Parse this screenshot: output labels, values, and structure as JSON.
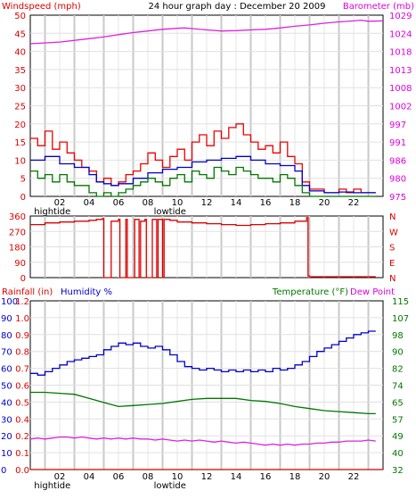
{
  "chart_data": [
    {
      "type": "line",
      "title": "24 hour graph day : December 20 2009",
      "left_axis_label": "Windspeed (mph)",
      "right_axis_label": "Barometer (mb)",
      "x_tick_labels": [
        "02",
        "04",
        "06",
        "08",
        "10",
        "12",
        "14",
        "16",
        "18",
        "20",
        "22"
      ],
      "x_range": [
        0,
        24
      ],
      "tide_markers": [
        {
          "label": "hightide",
          "hour": 1.5
        },
        {
          "label": "lowtide",
          "hour": 9.5
        }
      ],
      "left_ticks": [
        0,
        5,
        10,
        15,
        20,
        25,
        30,
        35,
        40,
        45,
        50
      ],
      "left_range": [
        0,
        50
      ],
      "right_ticks": [
        "975",
        "980",
        "986",
        "991",
        "997",
        "1002",
        "1008",
        "1013",
        "1018",
        "1024",
        "1029"
      ],
      "right_range": [
        975,
        1029
      ],
      "grid": true,
      "series": [
        {
          "axis": "right",
          "color": "#dd22dd",
          "x": [
            0,
            2,
            4,
            5,
            6,
            7,
            8,
            9,
            10,
            10.5,
            11,
            12,
            13,
            14,
            15,
            16,
            17,
            18,
            19,
            20,
            21,
            22,
            22.5,
            23,
            24
          ],
          "y": [
            1020.5,
            1021,
            1022,
            1022.5,
            1023.2,
            1023.8,
            1024.3,
            1024.8,
            1025.1,
            1025.2,
            1025,
            1024.6,
            1024.3,
            1024.4,
            1024.6,
            1024.8,
            1025.2,
            1025.7,
            1026.1,
            1026.6,
            1027,
            1027.3,
            1027.5,
            1027.2,
            1027.3
          ]
        },
        {
          "axis": "left",
          "color": "#ee0000",
          "x": [
            0,
            0.5,
            1,
            1.5,
            2,
            2.5,
            3,
            3.5,
            4,
            4.5,
            5,
            5.5,
            6,
            6.5,
            7,
            7.5,
            8,
            8.5,
            9,
            9.5,
            10,
            10.5,
            11,
            11.5,
            12,
            12.5,
            13,
            13.5,
            14,
            14.5,
            15,
            15.5,
            16,
            16.5,
            17,
            17.5,
            18,
            18.5,
            19,
            19.5,
            20,
            20.5,
            21,
            21.5,
            22,
            22.5,
            23,
            23.5
          ],
          "y": [
            16,
            14,
            18,
            13,
            15,
            12,
            10,
            8,
            7,
            4,
            5,
            3,
            4,
            6,
            7,
            9,
            12,
            10,
            8,
            11,
            13,
            10,
            15,
            17,
            14,
            18,
            16,
            19,
            20,
            17,
            15,
            13,
            14,
            12,
            15,
            11,
            9,
            4,
            2,
            2,
            1,
            1,
            2,
            1,
            2,
            1,
            1,
            1
          ]
        },
        {
          "axis": "left",
          "color": "#0000cc",
          "x": [
            0,
            1,
            2,
            3,
            4,
            4.5,
            5,
            5.5,
            6,
            7,
            8,
            9,
            10,
            11,
            12,
            13,
            14,
            15,
            16,
            17,
            18,
            18.5,
            19,
            20,
            21,
            22,
            23,
            23.5
          ],
          "y": [
            10,
            11,
            9,
            8,
            6,
            4,
            3.5,
            3,
            3.5,
            5,
            6.5,
            7.5,
            8,
            9.5,
            10,
            10.5,
            11,
            10,
            9,
            8.5,
            7,
            3,
            1.5,
            1,
            1.2,
            1,
            1,
            1
          ]
        },
        {
          "axis": "left",
          "color": "#007700",
          "x": [
            0,
            0.5,
            1,
            1.5,
            2,
            2.5,
            3,
            3.5,
            4,
            4.5,
            5,
            5.5,
            6,
            6.5,
            7,
            7.5,
            8,
            8.5,
            9,
            9.5,
            10,
            10.5,
            11,
            11.5,
            12,
            12.5,
            13,
            13.5,
            14,
            14.5,
            15,
            15.5,
            16,
            16.5,
            17,
            17.5,
            18,
            18.5,
            19,
            19.5,
            20,
            20.5,
            21,
            21.5,
            22,
            22.5,
            23,
            23.5
          ],
          "y": [
            7,
            5,
            6,
            4,
            6,
            4,
            3,
            3,
            1,
            0,
            1,
            0,
            1,
            2,
            3,
            4,
            5,
            4,
            3,
            5,
            6,
            4,
            7,
            6,
            5,
            8,
            7,
            6,
            8,
            7,
            6,
            5,
            5,
            4,
            6,
            5,
            3,
            1,
            0,
            0,
            0,
            0,
            0,
            0,
            0,
            0,
            0,
            0
          ]
        }
      ]
    },
    {
      "type": "line",
      "left_ticks": [
        0,
        90,
        180,
        270,
        360
      ],
      "left_range": [
        0,
        360
      ],
      "right_ticks": [
        "N",
        "E",
        "S",
        "W",
        "N"
      ],
      "x_range": [
        0,
        24
      ],
      "grid": true,
      "series": [
        {
          "color": "#dd0000",
          "x": [
            0,
            1,
            2,
            3,
            4,
            4.5,
            4.9,
            5,
            5.4,
            5.5,
            6,
            6.1,
            6.2,
            6.5,
            6.6,
            7,
            7.1,
            7.4,
            7.5,
            7.8,
            7.9,
            8.2,
            8.3,
            8.6,
            8.7,
            9,
            9.1,
            9.4,
            9.5,
            10,
            11,
            12,
            13,
            14,
            15,
            16,
            17,
            18,
            18.8,
            18.9,
            19,
            20,
            21,
            22,
            23,
            23.5
          ],
          "y": [
            310,
            320,
            325,
            330,
            335,
            340,
            345,
            0,
            0,
            330,
            340,
            0,
            0,
            340,
            0,
            0,
            340,
            0,
            330,
            340,
            0,
            0,
            340,
            0,
            340,
            0,
            340,
            340,
            335,
            325,
            320,
            315,
            310,
            305,
            310,
            315,
            320,
            330,
            350,
            10,
            5,
            5,
            5,
            5,
            5,
            5
          ]
        }
      ]
    },
    {
      "type": "line",
      "left_axis_label": "Rainfall (in)",
      "humidity_label": "Humidity %",
      "right_axis_label": "Temperature (°F)",
      "right_axis_label_2": "Dew Point",
      "x_tick_labels": [
        "02",
        "04",
        "06",
        "08",
        "10",
        "12",
        "14",
        "16",
        "18",
        "20",
        "22"
      ],
      "x_range": [
        0,
        24
      ],
      "tide_markers": [
        {
          "label": "hightide",
          "hour": 1.5
        },
        {
          "label": "lowtide",
          "hour": 9.5
        }
      ],
      "humidity_ticks": [
        0,
        10,
        20,
        30,
        40,
        50,
        60,
        70,
        80,
        90,
        100
      ],
      "humidity_range": [
        0,
        100
      ],
      "rain_ticks": [
        "0.0",
        "0.1",
        "0.2",
        "0.4",
        "0.5",
        "0.6",
        "0.7",
        "0.8",
        "0.9",
        "1.0",
        "1.2"
      ],
      "rain_range": [
        0,
        1.2
      ],
      "temp_ticks": [
        "32",
        "40",
        "49",
        "57",
        "65",
        "74",
        "82",
        "90",
        "98",
        "107",
        "115"
      ],
      "temp_range": [
        32,
        115
      ],
      "grid": true,
      "series": [
        {
          "name": "Humidity %",
          "axis": "humidity",
          "color": "#0000cc",
          "x": [
            0,
            0.5,
            1,
            1.5,
            2,
            2.5,
            3,
            3.5,
            4,
            4.5,
            5,
            5.5,
            6,
            6.5,
            7,
            7.5,
            8,
            8.5,
            9,
            9.5,
            10,
            10.5,
            11,
            11.5,
            12,
            12.5,
            13,
            13.5,
            14,
            14.5,
            15,
            15.5,
            16,
            16.5,
            17,
            17.5,
            18,
            18.5,
            19,
            19.5,
            20,
            20.5,
            21,
            21.5,
            22,
            22.5,
            23,
            23.5
          ],
          "y": [
            57,
            56,
            58,
            60,
            62,
            64,
            65,
            66,
            67,
            68,
            71,
            73,
            75,
            74,
            75,
            73,
            72,
            73,
            71,
            68,
            64,
            61,
            60,
            59,
            60,
            59,
            58,
            59,
            58,
            59,
            58,
            59,
            58,
            60,
            59,
            60,
            62,
            64,
            67,
            70,
            72,
            74,
            76,
            78,
            80,
            81,
            82,
            82
          ]
        },
        {
          "name": "Temperature (°F)",
          "axis": "temp",
          "color": "#007700",
          "x": [
            0,
            1,
            2,
            3,
            4,
            5,
            5.5,
            6,
            7,
            8,
            9,
            10,
            11,
            12,
            13,
            14,
            15,
            16,
            17,
            18,
            19,
            20,
            21,
            22,
            23,
            23.5
          ],
          "y": [
            70,
            70,
            69.5,
            69,
            67,
            65,
            64,
            63,
            63.5,
            64,
            64.5,
            65.5,
            66.5,
            67,
            67,
            67,
            66,
            65.5,
            64.5,
            63,
            62,
            61,
            60.5,
            60,
            59.5,
            59.5
          ]
        },
        {
          "name": "Dew Point",
          "axis": "temp",
          "color": "#dd22dd",
          "x": [
            0,
            0.5,
            1,
            1.5,
            2,
            2.5,
            3,
            3.5,
            4,
            4.5,
            5,
            5.5,
            6,
            6.5,
            7,
            7.5,
            8,
            8.5,
            9,
            9.5,
            10,
            10.5,
            11,
            11.5,
            12,
            12.5,
            13,
            13.5,
            14,
            14.5,
            15,
            15.5,
            16,
            16.5,
            17,
            17.5,
            18,
            18.5,
            19,
            19.5,
            20,
            20.5,
            21,
            21.5,
            22,
            22.5,
            23,
            23.5
          ],
          "y": [
            47,
            47.5,
            47,
            47.5,
            48,
            48,
            47.5,
            48,
            47.5,
            47,
            47.5,
            47,
            47.5,
            47,
            47.5,
            47,
            47,
            46.5,
            47,
            46.5,
            46,
            46.5,
            46,
            46.5,
            46,
            45.5,
            46,
            45.5,
            45,
            45.5,
            45,
            44.5,
            44,
            44.5,
            44,
            44.5,
            44,
            44.5,
            44.5,
            45,
            45,
            45.5,
            45.5,
            46,
            46,
            46,
            46.5,
            46
          ]
        },
        {
          "name": "Rainfall (in)",
          "axis": "rain",
          "color": "#cc0000",
          "x": [
            0,
            24
          ],
          "y": [
            0,
            0
          ]
        }
      ]
    }
  ]
}
